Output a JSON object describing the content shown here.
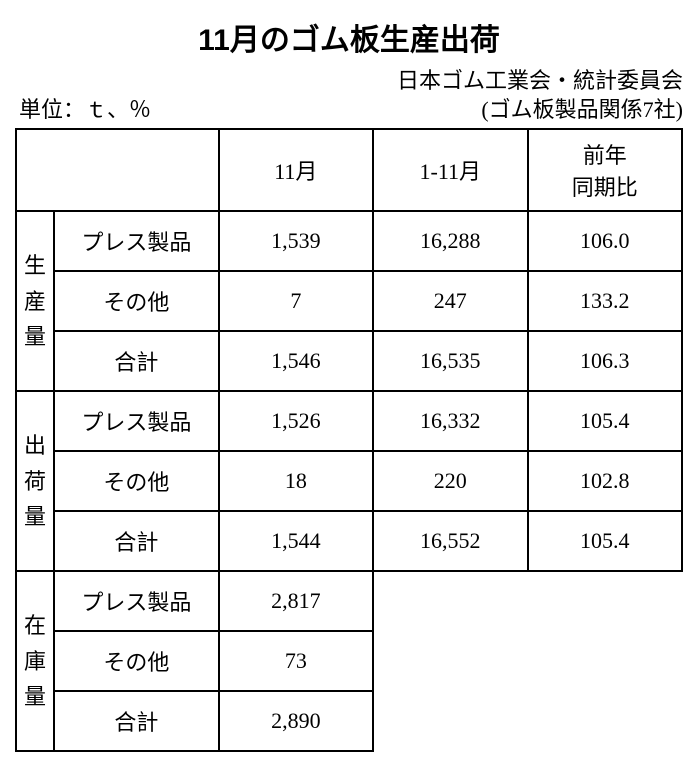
{
  "title": "11月のゴム板生産出荷",
  "unit_label": "単位：ｔ、％",
  "source_line1": "日本ゴム工業会・統計委員会",
  "source_line2": "(ゴム板製品関係7社)",
  "columns": {
    "c1": "11月",
    "c2": "1-11月",
    "c3": "前年\n同期比"
  },
  "groups": {
    "g1": "生産量",
    "g2": "出荷量",
    "g3": "在庫量"
  },
  "subcats": {
    "s1": "プレス製品",
    "s2": "その他",
    "s3": "合計"
  },
  "rows": [
    {
      "s": "s1",
      "c1": "1,539",
      "c2": "16,288",
      "c3": "106.0"
    },
    {
      "s": "s2",
      "c1": "7",
      "c2": "247",
      "c3": "133.2"
    },
    {
      "s": "s3",
      "c1": "1,546",
      "c2": "16,535",
      "c3": "106.3"
    },
    {
      "s": "s1",
      "c1": "1,526",
      "c2": "16,332",
      "c3": "105.4"
    },
    {
      "s": "s2",
      "c1": "18",
      "c2": "220",
      "c3": "102.8"
    },
    {
      "s": "s3",
      "c1": "1,544",
      "c2": "16,552",
      "c3": "105.4"
    },
    {
      "s": "s1",
      "c1": "2,817"
    },
    {
      "s": "s2",
      "c1": "73"
    },
    {
      "s": "s3",
      "c1": "2,890"
    }
  ],
  "style": {
    "font_size_body": 22,
    "font_size_title": 30,
    "border_color": "#000000",
    "background_color": "#ffffff",
    "text_color": "#000000"
  }
}
